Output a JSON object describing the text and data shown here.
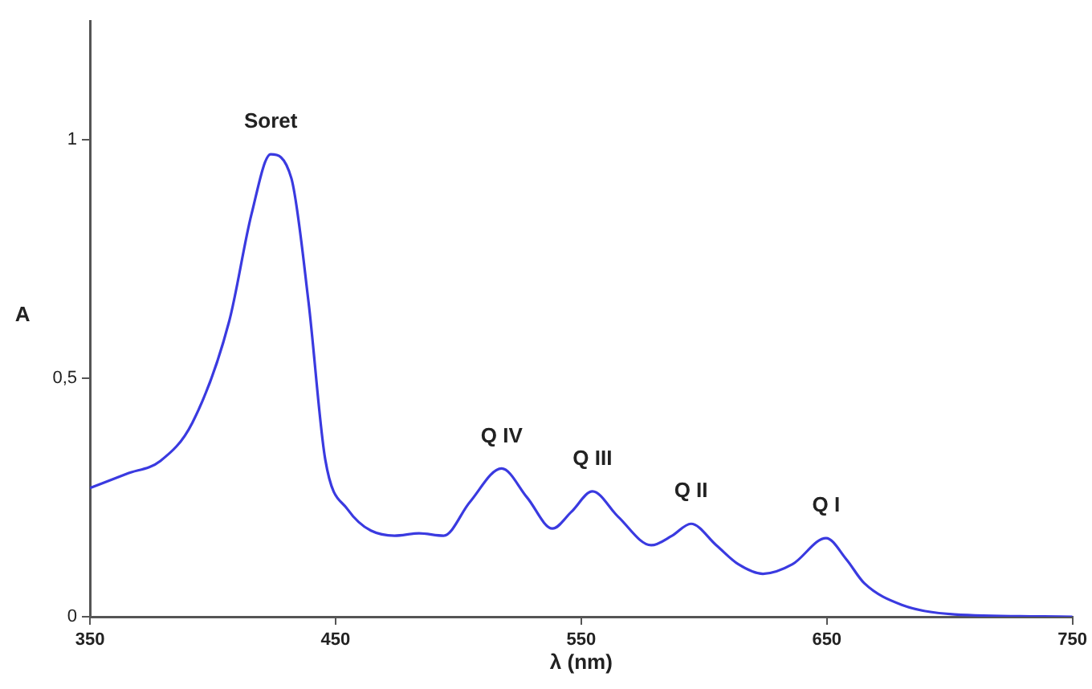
{
  "chart_data": {
    "type": "line",
    "xlabel": "λ (nm)",
    "ylabel": "A",
    "x": [
      350,
      365,
      378.7,
      391.7,
      406.7,
      415.8,
      423.6,
      432,
      439,
      445.8,
      454.8,
      474,
      484,
      494,
      504.6,
      517.6,
      528,
      538.3,
      546,
      554.6,
      565,
      578.5,
      587,
      594.7,
      605,
      614,
      624,
      636,
      649.7,
      658,
      665.3,
      680.5,
      702,
      750
    ],
    "series": [
      {
        "color": "#3a3ae0",
        "values": [
          0.27,
          0.3,
          0.327,
          0.407,
          0.62,
          0.845,
          0.97,
          0.92,
          0.66,
          0.33,
          0.226,
          0.17,
          0.175,
          0.17,
          0.24,
          0.311,
          0.25,
          0.185,
          0.22,
          0.263,
          0.21,
          0.15,
          0.17,
          0.195,
          0.15,
          0.11,
          0.09,
          0.11,
          0.165,
          0.12,
          0.07,
          0.025,
          0.005,
          0
        ]
      }
    ],
    "xlim": [
      350,
      750
    ],
    "xticks": [
      350,
      450,
      550,
      650,
      750
    ],
    "ylim": [
      0,
      1.25
    ],
    "yticks": [
      0,
      {
        "value": 0.5,
        "label": "0,5"
      },
      1
    ],
    "grid": false,
    "legend": false,
    "marker": "none",
    "line_style": "solid",
    "annotations": [
      {
        "text": "Soret",
        "x": 423.6,
        "y": 0.97
      },
      {
        "text": "Q IV",
        "x": 517.6,
        "y": 0.311
      },
      {
        "text": "Q III",
        "x": 554.6,
        "y": 0.263
      },
      {
        "text": "Q II",
        "x": 594.7,
        "y": 0.195
      },
      {
        "text": "Q I",
        "x": 649.7,
        "y": 0.165
      }
    ]
  }
}
